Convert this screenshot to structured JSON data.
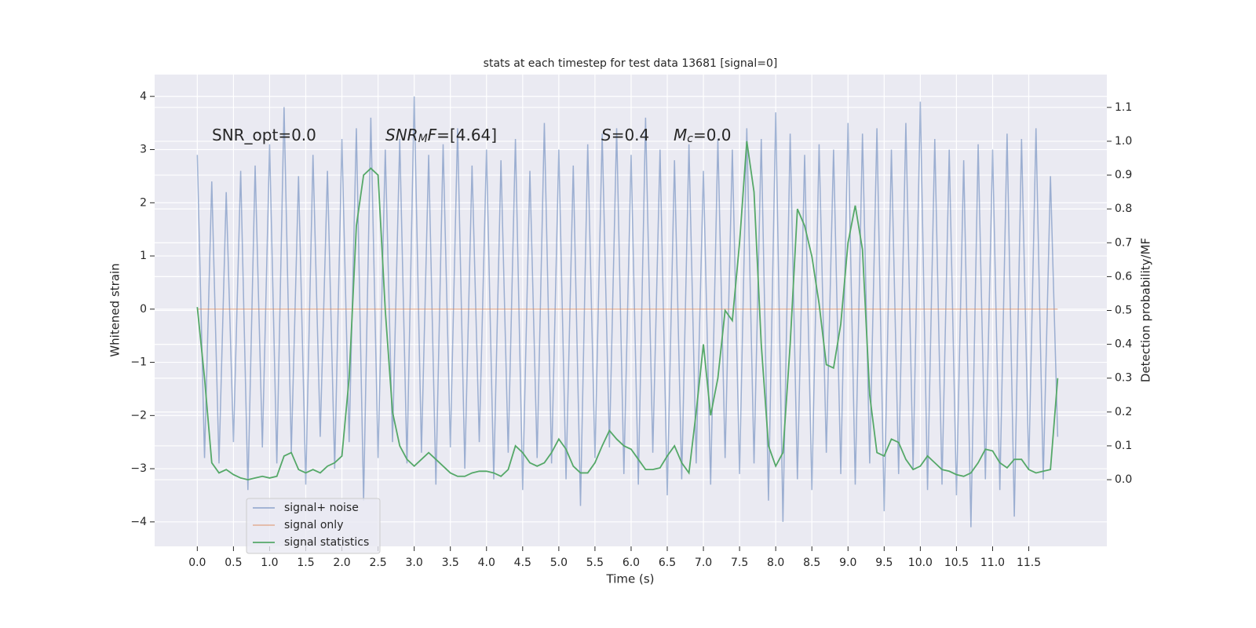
{
  "chart_data": {
    "type": "line",
    "title": "stats at each timestep for test data 13681 [signal=0]",
    "xlabel": "Time (s)",
    "ylabel": "Whitened strain",
    "y2label": "Detection probability/MF",
    "annotations": [
      [
        {
          "text": "SNR_opt=0.0"
        }
      ],
      [
        {
          "text": "SNR",
          "style": "italic"
        },
        {
          "text": "M",
          "style": "sub"
        },
        {
          "text": "F",
          "style": "italic"
        },
        {
          "text": "=[4.64]"
        }
      ],
      [
        {
          "text": "S",
          "style": "italic"
        },
        {
          "text": "=0.4"
        }
      ],
      [
        {
          "text": "M",
          "style": "italic"
        },
        {
          "text": "c",
          "style": "sub"
        },
        {
          "text": "=0.0"
        }
      ]
    ],
    "x": [
      0,
      0.1,
      0.2,
      0.3,
      0.4,
      0.5,
      0.6,
      0.7,
      0.8,
      0.9,
      1,
      1.1,
      1.2,
      1.3,
      1.4,
      1.5,
      1.6,
      1.7,
      1.8,
      1.9,
      2,
      2.1,
      2.2,
      2.3,
      2.4,
      2.5,
      2.6,
      2.7,
      2.8,
      2.9,
      3,
      3.1,
      3.2,
      3.3,
      3.4,
      3.5,
      3.6,
      3.7,
      3.8,
      3.9,
      4,
      4.1,
      4.2,
      4.3,
      4.4,
      4.5,
      4.6,
      4.7,
      4.8,
      4.9,
      5,
      5.1,
      5.2,
      5.3,
      5.4,
      5.5,
      5.6,
      5.7,
      5.8,
      5.9,
      6,
      6.1,
      6.2,
      6.3,
      6.4,
      6.5,
      6.6,
      6.7,
      6.8,
      6.9,
      7,
      7.1,
      7.2,
      7.3,
      7.4,
      7.5,
      7.6,
      7.7,
      7.8,
      7.9,
      8,
      8.1,
      8.2,
      8.3,
      8.4,
      8.5,
      8.6,
      8.7,
      8.8,
      8.9,
      9,
      9.1,
      9.2,
      9.3,
      9.4,
      9.5,
      9.6,
      9.7,
      9.8,
      9.9,
      10,
      10.1,
      10.2,
      10.3,
      10.4,
      10.5,
      10.6,
      10.7,
      10.8,
      10.9,
      11,
      11.1,
      11.2,
      11.3,
      11.4,
      11.5,
      11.6,
      11.7,
      11.8,
      11.9
    ],
    "series": [
      {
        "name": "signal+ noise",
        "color": "#4c72b0",
        "axis": "y",
        "values": [
          2.9,
          -2.8,
          2.4,
          -2.9,
          2.2,
          -2.5,
          2.6,
          -3.4,
          2.7,
          -2.6,
          3.1,
          -2.9,
          3.8,
          -2.7,
          2.5,
          -3.3,
          2.9,
          -2.4,
          2.6,
          -3.0,
          3.2,
          -2.5,
          3.4,
          -3.6,
          3.6,
          -2.8,
          3.0,
          -2.5,
          3.2,
          -2.9,
          4.0,
          -2.7,
          2.9,
          -3.3,
          3.1,
          -2.6,
          3.4,
          -3.0,
          2.7,
          -2.5,
          3.0,
          -3.2,
          2.8,
          -2.7,
          3.2,
          -3.4,
          2.6,
          -2.8,
          3.5,
          -2.9,
          3.0,
          -3.2,
          2.7,
          -3.7,
          3.1,
          -2.8,
          3.3,
          -2.6,
          3.4,
          -3.1,
          2.9,
          -3.3,
          3.6,
          -2.7,
          3.0,
          -3.5,
          2.8,
          -3.2,
          3.1,
          -2.9,
          2.6,
          -3.3,
          3.2,
          -2.8,
          3.0,
          -3.1,
          3.4,
          -2.9,
          3.2,
          -3.6,
          3.7,
          -4.0,
          3.3,
          -3.2,
          2.9,
          -3.4,
          3.1,
          -2.7,
          3.0,
          -3.1,
          3.5,
          -3.3,
          3.3,
          -2.9,
          3.4,
          -3.8,
          3.0,
          -3.1,
          3.5,
          -3.0,
          3.9,
          -3.4,
          3.2,
          -3.3,
          3.0,
          -3.5,
          2.8,
          -4.1,
          3.1,
          -3.2,
          3.0,
          -3.4,
          3.3,
          -3.9,
          3.2,
          -3.0,
          3.4,
          -3.2,
          2.5,
          -2.4
        ]
      },
      {
        "name": "signal only",
        "color": "#dd8452",
        "axis": "y",
        "values": [
          0,
          0,
          0,
          0,
          0,
          0,
          0,
          0,
          0,
          0,
          0,
          0,
          0,
          0,
          0,
          0,
          0,
          0,
          0,
          0,
          0,
          0,
          0,
          0,
          0,
          0,
          0,
          0,
          0,
          0,
          0,
          0,
          0,
          0,
          0,
          0,
          0,
          0,
          0,
          0,
          0,
          0,
          0,
          0,
          0,
          0,
          0,
          0,
          0,
          0,
          0,
          0,
          0,
          0,
          0,
          0,
          0,
          0,
          0,
          0,
          0,
          0,
          0,
          0,
          0,
          0,
          0,
          0,
          0,
          0,
          0,
          0,
          0,
          0,
          0,
          0,
          0,
          0,
          0,
          0,
          0,
          0,
          0,
          0,
          0,
          0,
          0,
          0,
          0,
          0,
          0,
          0,
          0,
          0,
          0,
          0,
          0,
          0,
          0,
          0,
          0,
          0,
          0,
          0,
          0,
          0,
          0,
          0,
          0,
          0,
          0,
          0,
          0,
          0,
          0,
          0,
          0,
          0,
          0,
          0
        ]
      },
      {
        "name": "signal statistics",
        "color": "#55a868",
        "axis": "y2",
        "values": [
          0.51,
          0.3,
          0.05,
          0.02,
          0.03,
          0.015,
          0.005,
          0,
          0.005,
          0.01,
          0.005,
          0.01,
          0.07,
          0.08,
          0.03,
          0.02,
          0.03,
          0.02,
          0.04,
          0.05,
          0.07,
          0.3,
          0.75,
          0.9,
          0.92,
          0.9,
          0.5,
          0.2,
          0.1,
          0.06,
          0.04,
          0.06,
          0.08,
          0.06,
          0.04,
          0.02,
          0.01,
          0.01,
          0.02,
          0.025,
          0.025,
          0.02,
          0.01,
          0.03,
          0.1,
          0.08,
          0.05,
          0.04,
          0.05,
          0.08,
          0.12,
          0.09,
          0.04,
          0.02,
          0.02,
          0.05,
          0.1,
          0.145,
          0.12,
          0.1,
          0.09,
          0.06,
          0.03,
          0.03,
          0.035,
          0.07,
          0.1,
          0.05,
          0.02,
          0.2,
          0.4,
          0.19,
          0.3,
          0.5,
          0.47,
          0.7,
          1.0,
          0.85,
          0.4,
          0.1,
          0.04,
          0.08,
          0.4,
          0.8,
          0.75,
          0.66,
          0.52,
          0.34,
          0.33,
          0.46,
          0.7,
          0.81,
          0.68,
          0.25,
          0.08,
          0.07,
          0.12,
          0.11,
          0.06,
          0.03,
          0.04,
          0.07,
          0.05,
          0.03,
          0.025,
          0.015,
          0.01,
          0.02,
          0.05,
          0.09,
          0.085,
          0.05,
          0.035,
          0.06,
          0.06,
          0.03,
          0.02,
          0.025,
          0.03,
          0.3
        ]
      }
    ],
    "xlim": [
      -0.59,
      12.58
    ],
    "ylim": [
      -4.46,
      4.41
    ],
    "y2lim": [
      -0.197,
      1.197
    ],
    "xticks": [
      {
        "value": 0,
        "label": "0.0"
      },
      0.5,
      {
        "value": 1,
        "label": "1.0"
      },
      1.5,
      {
        "value": 2,
        "label": "2.0"
      },
      2.5,
      {
        "value": 3,
        "label": "3.0"
      },
      3.5,
      {
        "value": 4,
        "label": "4.0"
      },
      4.5,
      {
        "value": 5,
        "label": "5.0"
      },
      5.5,
      {
        "value": 6,
        "label": "6.0"
      },
      6.5,
      {
        "value": 7,
        "label": "7.0"
      },
      7.5,
      {
        "value": 8,
        "label": "8.0"
      },
      8.5,
      {
        "value": 9,
        "label": "9.0"
      },
      9.5,
      {
        "value": 10,
        "label": "10.0"
      },
      10.5,
      {
        "value": 11,
        "label": "11.0"
      },
      11.5
    ],
    "yticks": [
      {
        "value": -4,
        "label": "−4"
      },
      {
        "value": -3,
        "label": "−3"
      },
      {
        "value": -2,
        "label": "−2"
      },
      {
        "value": -1,
        "label": "−1"
      },
      0,
      1,
      2,
      3,
      4
    ],
    "y2ticks": [
      {
        "value": 0,
        "label": "0.0"
      },
      0.1,
      0.2,
      0.3,
      0.4,
      0.5,
      0.6,
      0.7,
      0.8,
      0.9,
      {
        "value": 1,
        "label": "1.0"
      },
      1.1
    ],
    "grid": true,
    "legend": "lower left"
  }
}
